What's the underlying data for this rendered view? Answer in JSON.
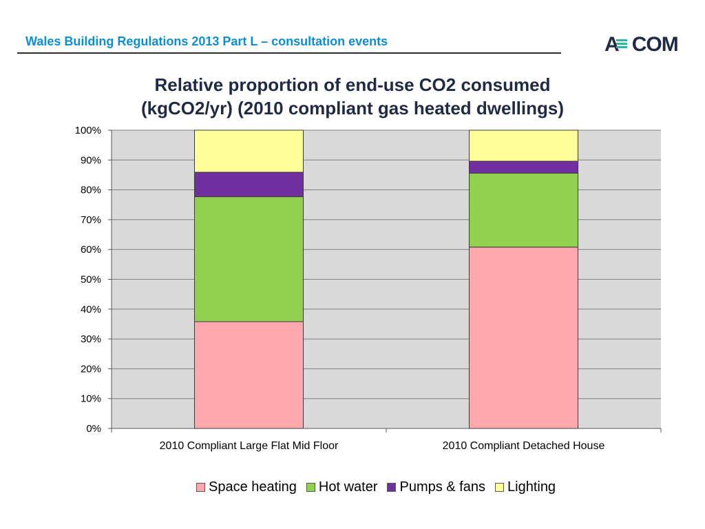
{
  "header": {
    "title": "Wales Building Regulations 2013 Part L – consultation events",
    "logo_text": "AECOM"
  },
  "chart_data": {
    "type": "bar",
    "stacked": true,
    "title_lines": [
      "Relative proportion of end-use CO2 consumed",
      "(kgCO2/yr) (2010 compliant gas heated dwellings)"
    ],
    "categories": [
      "2010 Compliant Large Flat Mid Floor",
      "2010 Compliant Detached House"
    ],
    "series": [
      {
        "name": "Space heating",
        "color": "#ffa8ad",
        "values": [
          35.8,
          60.8
        ]
      },
      {
        "name": "Hot water",
        "color": "#92d050",
        "values": [
          41.9,
          24.8
        ]
      },
      {
        "name": "Pumps & fans",
        "color": "#7030a0",
        "values": [
          8.2,
          4.0
        ]
      },
      {
        "name": "Lighting",
        "color": "#ffff99",
        "values": [
          14.1,
          10.4
        ]
      }
    ],
    "y_ticks": [
      "0%",
      "10%",
      "20%",
      "30%",
      "40%",
      "50%",
      "60%",
      "70%",
      "80%",
      "90%",
      "100%"
    ],
    "ylim": [
      0,
      100
    ],
    "grid": true,
    "plot_background": "#d9d9d9",
    "legend_position": "bottom"
  }
}
